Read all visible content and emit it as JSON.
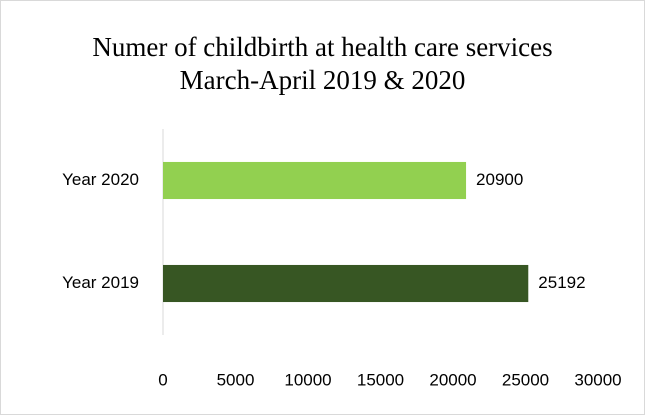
{
  "chart_data": {
    "type": "bar",
    "orientation": "horizontal",
    "title": "Numer of childbirth at health care services March-April 2019 & 2020",
    "categories": [
      "Year 2020",
      "Year 2019"
    ],
    "values": [
      20900,
      25192
    ],
    "colors": [
      "#92d050",
      "#375623"
    ],
    "xlim": [
      0,
      30000
    ],
    "xticks": [
      0,
      5000,
      10000,
      15000,
      20000,
      25000,
      30000
    ],
    "grid": false
  }
}
